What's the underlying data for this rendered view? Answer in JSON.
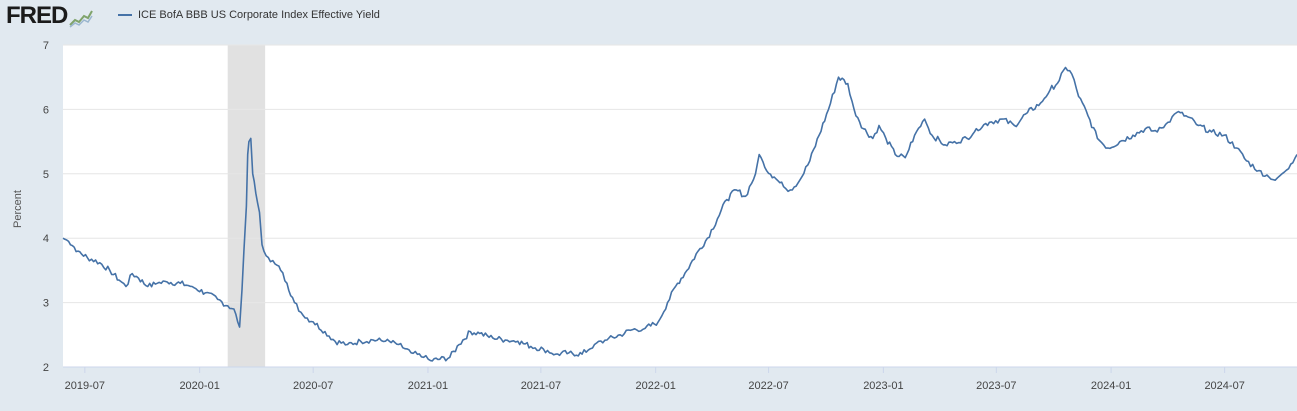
{
  "header": {
    "logo_text": "FRED",
    "legend_label": "ICE BofA BBB US Corporate Index Effective Yield"
  },
  "colors": {
    "series": "#4572a7",
    "plot_bg": "#ffffff",
    "page_bg": "#e1e9f0",
    "grid": "#e6e6e6",
    "recession": "#e1e1e1"
  },
  "chart_data": {
    "type": "line",
    "title": "",
    "xlabel": "",
    "ylabel": "Percent",
    "ylim": [
      2,
      7
    ],
    "xlim": [
      "2019-05-27",
      "2024-10-25"
    ],
    "yticks": [
      "2",
      "3",
      "4",
      "5",
      "6",
      "7"
    ],
    "xticks": [
      "2019-07",
      "2020-01",
      "2020-07",
      "2021-01",
      "2021-07",
      "2022-01",
      "2022-07",
      "2023-01",
      "2023-07",
      "2024-01",
      "2024-07"
    ],
    "grid": true,
    "legend": "top-left",
    "recession_shading": [
      [
        "2020-02-15",
        "2020-04-15"
      ]
    ],
    "series": [
      {
        "name": "ICE BofA BBB US Corporate Index Effective Yield",
        "points": [
          [
            "2019-05-27",
            4.0
          ],
          [
            "2019-06-05",
            3.95
          ],
          [
            "2019-06-20",
            3.8
          ],
          [
            "2019-07-05",
            3.7
          ],
          [
            "2019-07-25",
            3.62
          ],
          [
            "2019-08-10",
            3.5
          ],
          [
            "2019-08-25",
            3.35
          ],
          [
            "2019-09-05",
            3.25
          ],
          [
            "2019-09-15",
            3.45
          ],
          [
            "2019-09-25",
            3.38
          ],
          [
            "2019-10-10",
            3.25
          ],
          [
            "2019-10-25",
            3.3
          ],
          [
            "2019-11-10",
            3.32
          ],
          [
            "2019-12-01",
            3.3
          ],
          [
            "2019-12-20",
            3.25
          ],
          [
            "2020-01-10",
            3.15
          ],
          [
            "2020-01-30",
            3.05
          ],
          [
            "2020-02-15",
            2.95
          ],
          [
            "2020-02-25",
            2.9
          ],
          [
            "2020-03-02",
            2.7
          ],
          [
            "2020-03-05",
            2.62
          ],
          [
            "2020-03-09",
            3.2
          ],
          [
            "2020-03-12",
            3.8
          ],
          [
            "2020-03-16",
            4.5
          ],
          [
            "2020-03-18",
            5.3
          ],
          [
            "2020-03-20",
            5.5
          ],
          [
            "2020-03-23",
            5.55
          ],
          [
            "2020-03-26",
            5.0
          ],
          [
            "2020-03-31",
            4.7
          ],
          [
            "2020-04-06",
            4.4
          ],
          [
            "2020-04-10",
            3.9
          ],
          [
            "2020-04-13",
            3.8
          ],
          [
            "2020-04-20",
            3.7
          ],
          [
            "2020-05-01",
            3.6
          ],
          [
            "2020-05-10",
            3.5
          ],
          [
            "2020-05-20",
            3.3
          ],
          [
            "2020-06-01",
            3.0
          ],
          [
            "2020-06-15",
            2.8
          ],
          [
            "2020-07-01",
            2.7
          ],
          [
            "2020-07-20",
            2.55
          ],
          [
            "2020-08-05",
            2.4
          ],
          [
            "2020-08-25",
            2.35
          ],
          [
            "2020-09-15",
            2.4
          ],
          [
            "2020-10-05",
            2.42
          ],
          [
            "2020-10-25",
            2.4
          ],
          [
            "2020-11-15",
            2.35
          ],
          [
            "2020-12-05",
            2.22
          ],
          [
            "2020-12-25",
            2.15
          ],
          [
            "2021-01-05",
            2.1
          ],
          [
            "2021-01-20",
            2.12
          ],
          [
            "2021-02-05",
            2.15
          ],
          [
            "2021-02-20",
            2.35
          ],
          [
            "2021-03-10",
            2.55
          ],
          [
            "2021-03-25",
            2.52
          ],
          [
            "2021-04-15",
            2.45
          ],
          [
            "2021-05-05",
            2.42
          ],
          [
            "2021-05-25",
            2.4
          ],
          [
            "2021-06-15",
            2.32
          ],
          [
            "2021-07-05",
            2.28
          ],
          [
            "2021-07-25",
            2.2
          ],
          [
            "2021-08-15",
            2.22
          ],
          [
            "2021-09-05",
            2.2
          ],
          [
            "2021-09-25",
            2.35
          ],
          [
            "2021-10-15",
            2.42
          ],
          [
            "2021-11-05",
            2.5
          ],
          [
            "2021-11-25",
            2.58
          ],
          [
            "2021-12-15",
            2.6
          ],
          [
            "2022-01-05",
            2.7
          ],
          [
            "2022-01-20",
            3.0
          ],
          [
            "2022-02-05",
            3.3
          ],
          [
            "2022-02-20",
            3.5
          ],
          [
            "2022-03-10",
            3.8
          ],
          [
            "2022-03-25",
            4.0
          ],
          [
            "2022-04-10",
            4.3
          ],
          [
            "2022-04-25",
            4.6
          ],
          [
            "2022-05-10",
            4.75
          ],
          [
            "2022-05-25",
            4.65
          ],
          [
            "2022-06-10",
            5.0
          ],
          [
            "2022-06-16",
            5.3
          ],
          [
            "2022-06-25",
            5.1
          ],
          [
            "2022-07-10",
            4.95
          ],
          [
            "2022-07-25",
            4.8
          ],
          [
            "2022-08-05",
            4.75
          ],
          [
            "2022-08-20",
            4.9
          ],
          [
            "2022-09-05",
            5.2
          ],
          [
            "2022-09-20",
            5.6
          ],
          [
            "2022-10-05",
            6.0
          ],
          [
            "2022-10-21",
            6.5
          ],
          [
            "2022-11-05",
            6.4
          ],
          [
            "2022-11-15",
            6.0
          ],
          [
            "2022-11-30",
            5.7
          ],
          [
            "2022-12-15",
            5.55
          ],
          [
            "2022-12-25",
            5.75
          ],
          [
            "2023-01-05",
            5.55
          ],
          [
            "2023-01-20",
            5.3
          ],
          [
            "2023-02-05",
            5.25
          ],
          [
            "2023-02-20",
            5.6
          ],
          [
            "2023-03-08",
            5.85
          ],
          [
            "2023-03-20",
            5.6
          ],
          [
            "2023-04-10",
            5.45
          ],
          [
            "2023-04-25",
            5.5
          ],
          [
            "2023-05-15",
            5.55
          ],
          [
            "2023-05-30",
            5.7
          ],
          [
            "2023-06-20",
            5.8
          ],
          [
            "2023-07-10",
            5.85
          ],
          [
            "2023-07-30",
            5.75
          ],
          [
            "2023-08-20",
            5.95
          ],
          [
            "2023-09-10",
            6.1
          ],
          [
            "2023-09-25",
            6.3
          ],
          [
            "2023-10-10",
            6.45
          ],
          [
            "2023-10-20",
            6.65
          ],
          [
            "2023-10-30",
            6.55
          ],
          [
            "2023-11-10",
            6.2
          ],
          [
            "2023-11-25",
            5.9
          ],
          [
            "2023-12-10",
            5.55
          ],
          [
            "2023-12-27",
            5.4
          ],
          [
            "2024-01-15",
            5.5
          ],
          [
            "2024-02-05",
            5.6
          ],
          [
            "2024-02-25",
            5.7
          ],
          [
            "2024-03-15",
            5.65
          ],
          [
            "2024-04-01",
            5.8
          ],
          [
            "2024-04-15",
            5.95
          ],
          [
            "2024-04-30",
            5.9
          ],
          [
            "2024-05-20",
            5.75
          ],
          [
            "2024-06-10",
            5.65
          ],
          [
            "2024-06-30",
            5.6
          ],
          [
            "2024-07-20",
            5.4
          ],
          [
            "2024-08-05",
            5.2
          ],
          [
            "2024-08-25",
            5.05
          ],
          [
            "2024-09-10",
            4.95
          ],
          [
            "2024-09-20",
            4.9
          ],
          [
            "2024-10-01",
            5.0
          ],
          [
            "2024-10-15",
            5.15
          ],
          [
            "2024-10-25",
            5.3
          ]
        ]
      }
    ]
  }
}
